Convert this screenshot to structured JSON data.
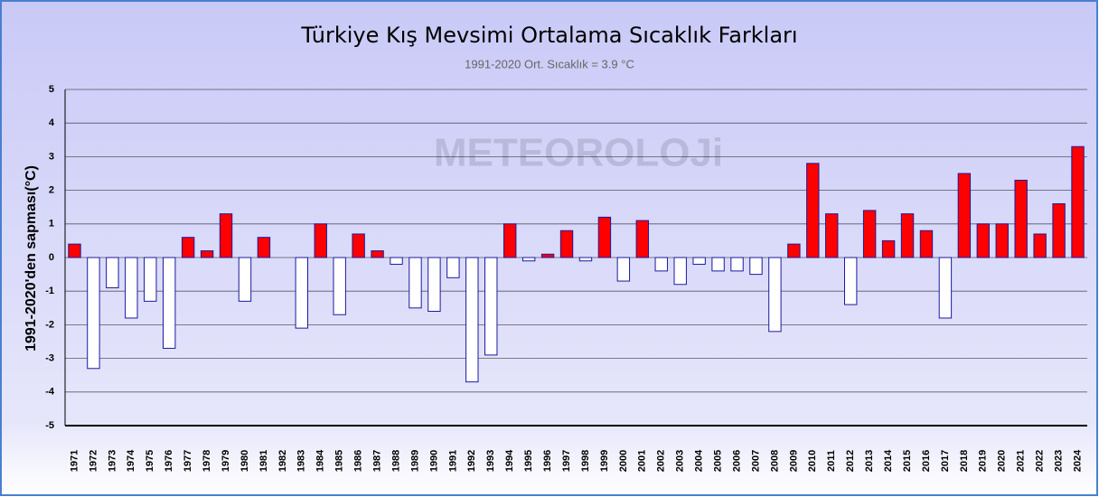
{
  "chart_data": {
    "type": "bar",
    "title": "Türkiye Kış Mevsimi Ortalama Sıcaklık Farkları",
    "subtitle": "1991-2020 Ort. Sıcaklık = 3.9 °C",
    "y_label": "1991-2020'den sapması(°C)",
    "watermark": "METEOROLOJi",
    "categories": [
      "1971",
      "1972",
      "1973",
      "1974",
      "1975",
      "1976",
      "1977",
      "1978",
      "1979",
      "1980",
      "1981",
      "1982",
      "1983",
      "1984",
      "1985",
      "1986",
      "1987",
      "1988",
      "1989",
      "1990",
      "1991",
      "1992",
      "1993",
      "1994",
      "1995",
      "1996",
      "1997",
      "1998",
      "1999",
      "2000",
      "2001",
      "2002",
      "2003",
      "2004",
      "2005",
      "2006",
      "2007",
      "2008",
      "2009",
      "2010",
      "2011",
      "2012",
      "2013",
      "2014",
      "2015",
      "2016",
      "2017",
      "2018",
      "2019",
      "2020",
      "2021",
      "2022",
      "2023",
      "2024"
    ],
    "values": [
      0.4,
      -3.3,
      -0.9,
      -1.8,
      -1.3,
      -2.7,
      0.6,
      0.2,
      1.3,
      -1.3,
      0.6,
      0.0,
      -2.1,
      1.0,
      -1.7,
      0.7,
      0.2,
      -0.2,
      -1.5,
      -1.6,
      -0.6,
      -3.7,
      -2.9,
      1.0,
      -0.1,
      0.1,
      0.8,
      -0.1,
      1.2,
      -0.7,
      1.1,
      -0.4,
      -0.8,
      -0.2,
      -0.4,
      -0.4,
      -0.5,
      -2.2,
      0.4,
      2.8,
      1.3,
      -1.4,
      1.4,
      0.5,
      1.3,
      0.8,
      -1.8,
      2.5,
      1.0,
      1.0,
      2.3,
      0.7,
      1.6,
      3.3
    ],
    "positive_color": "#ff0000",
    "negative_color": "#ffffff",
    "edge_color": "#1a1aa0",
    "ylim": [
      -5,
      5
    ],
    "yticks": [
      -5,
      -4,
      -3,
      -2,
      -1,
      0,
      1,
      2,
      3,
      4,
      5
    ],
    "grid": true
  }
}
